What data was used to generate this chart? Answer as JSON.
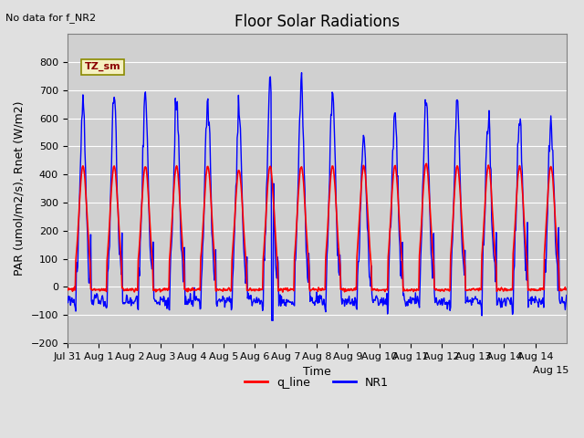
{
  "title": "Floor Solar Radiations",
  "xlabel": "Time",
  "ylabel": "PAR (umol/m2/s), Rnet (W/m2)",
  "ylim": [
    -200,
    900
  ],
  "yticks": [
    -200,
    -100,
    0,
    100,
    200,
    300,
    400,
    500,
    600,
    700,
    800
  ],
  "no_data_text": "No data for f_NR2",
  "tz_label": "TZ_sm",
  "bg_color": "#e0e0e0",
  "plot_bg_color": "#d0d0d0",
  "q_line_color": "#ff0000",
  "nr1_color": "#0000ff",
  "q_line_lw": 1.2,
  "nr1_lw": 1.0,
  "title_fontsize": 12,
  "label_fontsize": 9,
  "tick_fontsize": 8,
  "day_peaks_nr1": [
    650,
    685,
    695,
    660,
    660,
    638,
    730,
    715,
    695,
    520,
    625,
    665,
    660,
    590,
    600,
    585
  ],
  "day_peaks_q": [
    430,
    430,
    430,
    430,
    430,
    415,
    430,
    430,
    430,
    430,
    430,
    440,
    430,
    430,
    430,
    430
  ]
}
